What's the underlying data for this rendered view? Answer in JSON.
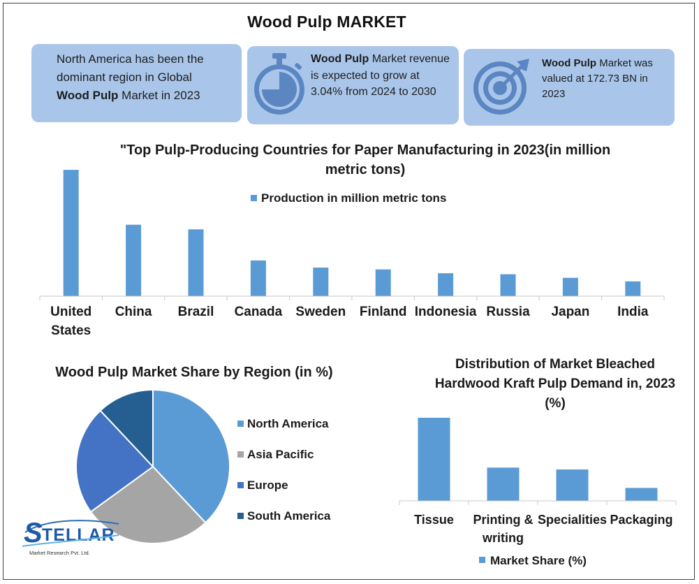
{
  "title": "Wood Pulp MARKET",
  "cards": [
    {
      "prefix": "North America has been the dominant region in Global ",
      "bold": "Wood Pulp",
      "suffix": " Market in 2023",
      "icon": "none"
    },
    {
      "prefix": "",
      "bold": "Wood Pulp",
      "suffix": " Market revenue is expected to grow at 3.04% from 2024 to 2030",
      "icon": "stopwatch-icon"
    },
    {
      "prefix": "",
      "bold": "Wood Pulp",
      "suffix": " Market was valued at 172.73 BN in 2023",
      "icon": "target-arrow-icon"
    }
  ],
  "colors": {
    "card_bg": "#a9c6ea",
    "bar": "#5b9bd5",
    "icon": "#5b86c2",
    "north_america": "#5b9bd5",
    "asia_pacific": "#a5a5a5",
    "europe": "#4472c4",
    "south_america": "#255e91"
  },
  "chart_data": [
    {
      "type": "bar",
      "title_line1": "\"Top Pulp-Producing Countries for Paper Manufacturing in 2023(in million",
      "title_line2": "metric tons)",
      "categories": [
        "United States",
        "China",
        "Brazil",
        "Canada",
        "Sweden",
        "Finland",
        "Indonesia",
        "Russia",
        "Japan",
        "India"
      ],
      "category_lines": [
        [
          "United",
          "States"
        ],
        [
          "China"
        ],
        [
          "Brazil"
        ],
        [
          "Canada"
        ],
        [
          "Sweden"
        ],
        [
          "Finland"
        ],
        [
          "Indonesia"
        ],
        [
          "Russia"
        ],
        [
          "Japan"
        ],
        [
          "India"
        ]
      ],
      "series": [
        {
          "name": "Production in million metric tons",
          "values": [
            49.5,
            28,
            26.2,
            14,
            11.2,
            10.5,
            9,
            8.6,
            7.2,
            5.8
          ]
        }
      ],
      "ylim": [
        0,
        52
      ],
      "legend": "top",
      "grid": false
    },
    {
      "type": "pie",
      "title": "Wood Pulp Market Share by Region (in %)",
      "labels": [
        "North America",
        "Asia Pacific",
        "Europe",
        "South America"
      ],
      "values": [
        38,
        27,
        23,
        12
      ],
      "legend": "right"
    },
    {
      "type": "bar",
      "title_lines": [
        "Distribution of Market Bleached",
        "Hardwood Kraft Pulp Demand in, 2023",
        "(%)"
      ],
      "categories": [
        "Tissue",
        "Printing & writing",
        "Specialities",
        "Packaging"
      ],
      "category_lines": [
        [
          "Tissue"
        ],
        [
          "Printing &",
          "writing"
        ],
        [
          "Specialities"
        ],
        [
          "Packaging"
        ]
      ],
      "series": [
        {
          "name": "Market Share (%)",
          "values": [
            45,
            18,
            17,
            7
          ]
        }
      ],
      "ylim": [
        0,
        45
      ],
      "legend": "bottom",
      "grid": false
    }
  ],
  "logo": {
    "wordmark": "TELLAR",
    "initial": "S",
    "tagline": "Market Research Pvt. Ltd."
  }
}
